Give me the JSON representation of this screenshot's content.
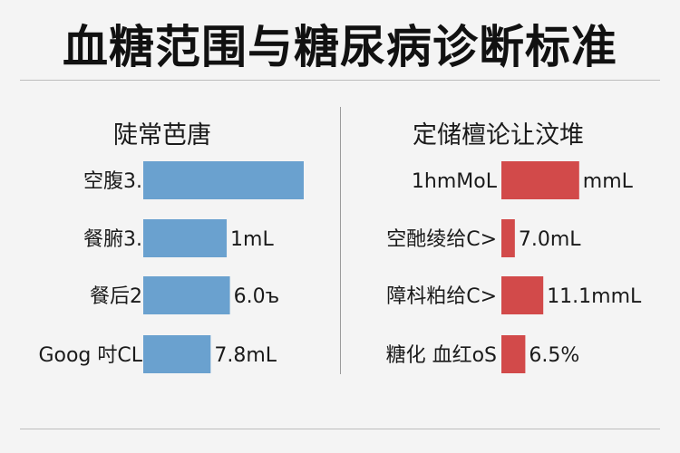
{
  "title": "血糖范围与糖尿病诊断标准",
  "chart_data": [
    {
      "type": "bar",
      "title": "陡常芭唐",
      "categories": [
        "空腹3.",
        "餐腑3.",
        "餐后2",
        "Goog 吋CL"
      ],
      "value_labels": [
        "",
        "1mL",
        "6.0ъ",
        "7.8mL"
      ],
      "values": [
        5.0,
        2.6,
        2.7,
        2.1
      ],
      "colors": {
        "bar": "#6aa1cf"
      }
    },
    {
      "type": "bar",
      "title": "定储檀论让汶堆",
      "categories": [
        "1hmMoL",
        "空酏绫给C>",
        "障枓粕给C>",
        "糖化 血红oS"
      ],
      "value_labels": [
        "mmL",
        "7.0mL",
        "11.1mmL",
        "6.5%"
      ],
      "values": [
        2.6,
        0.45,
        1.4,
        0.8
      ],
      "colors": {
        "bar": "#d24a4a"
      }
    }
  ]
}
